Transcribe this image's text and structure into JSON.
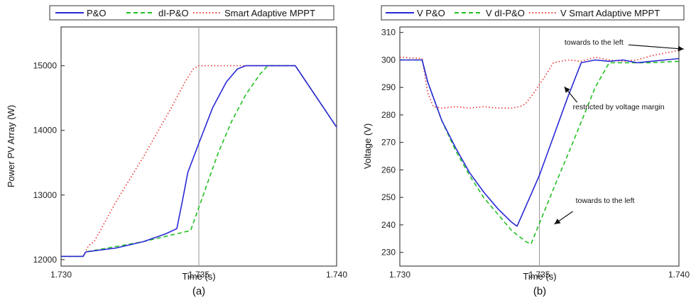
{
  "chart_data": [
    {
      "type": "line",
      "panel_label": "(a)",
      "xlabel": "Time (s)",
      "ylabel": "Power PV Array (W)",
      "xlim": [
        1.73,
        1.74
      ],
      "ylim": [
        11900,
        15600
      ],
      "xticks": [
        1.73,
        1.735,
        1.74
      ],
      "xtick_labels": [
        "1.730",
        "1.735",
        "1.740"
      ],
      "yticks": [
        12000,
        13000,
        14000,
        15000
      ],
      "ytick_labels": [
        "12000",
        "13000",
        "14000",
        "15000"
      ],
      "vline_x": 1.735,
      "grid": false,
      "legend_position": "top",
      "series": [
        {
          "name": "P&O",
          "color": "#2929d6",
          "dash": "solid",
          "x": [
            1.73,
            1.7308,
            1.7309,
            1.732,
            1.733,
            1.7338,
            1.7342,
            1.7344,
            1.7346,
            1.735,
            1.7355,
            1.736,
            1.7364,
            1.7367,
            1.7385,
            1.74
          ],
          "y": [
            12050,
            12050,
            12120,
            12180,
            12280,
            12400,
            12480,
            12900,
            13350,
            13800,
            14350,
            14750,
            14950,
            15000,
            15000,
            14050
          ]
        },
        {
          "name": "dI-P&O",
          "color": "#22c022",
          "dash": "dashed",
          "x": [
            1.73,
            1.7308,
            1.7309,
            1.733,
            1.7347,
            1.7352,
            1.7357,
            1.7362,
            1.7367,
            1.7372,
            1.7375,
            1.7385,
            1.74
          ],
          "y": [
            12050,
            12050,
            12120,
            12280,
            12450,
            13050,
            13650,
            14150,
            14550,
            14860,
            15000,
            15000,
            14050
          ]
        },
        {
          "name": "Smart Adaptive MPPT",
          "color": "#e83030",
          "dash": "dotted",
          "x": [
            1.73,
            1.7308,
            1.731,
            1.7312,
            1.732,
            1.733,
            1.734,
            1.7345,
            1.7348,
            1.735,
            1.7385,
            1.74
          ],
          "y": [
            12050,
            12050,
            12220,
            12280,
            12900,
            13600,
            14350,
            14750,
            14950,
            15000,
            15000,
            14050
          ]
        }
      ]
    },
    {
      "type": "line",
      "panel_label": "(b)",
      "xlabel": "Time (s)",
      "ylabel": "Voltage (V)",
      "xlim": [
        1.73,
        1.74
      ],
      "ylim": [
        225,
        312
      ],
      "xticks": [
        1.73,
        1.735,
        1.74
      ],
      "xtick_labels": [
        "1.730",
        "1.735",
        "1.740"
      ],
      "yticks": [
        230,
        240,
        250,
        260,
        270,
        280,
        290,
        300,
        310
      ],
      "ytick_labels": [
        "230",
        "240",
        "250",
        "260",
        "270",
        "280",
        "290",
        "300",
        "310"
      ],
      "vline_x": 1.735,
      "grid": false,
      "legend_position": "top",
      "annotations": [
        {
          "text": "towards to the left",
          "x": 1.7359,
          "y": 305.5
        },
        {
          "text": "restricted by voltage margin",
          "x": 1.7362,
          "y": 282
        },
        {
          "text": "towards to the left",
          "x": 1.7363,
          "y": 248
        }
      ],
      "series": [
        {
          "name": "V P&O",
          "color": "#2929d6",
          "dash": "solid",
          "x": [
            1.73,
            1.7308,
            1.731,
            1.7315,
            1.732,
            1.7325,
            1.733,
            1.7335,
            1.734,
            1.7342,
            1.735,
            1.7355,
            1.736,
            1.7365,
            1.737,
            1.7375,
            1.738,
            1.7385,
            1.739,
            1.7395,
            1.74
          ],
          "y": [
            300,
            300,
            292,
            278,
            268,
            259,
            252,
            246,
            241,
            239.5,
            258,
            272,
            286,
            299,
            300,
            299.5,
            300,
            299,
            299.5,
            300,
            300.5
          ]
        },
        {
          "name": "V dI-P&O",
          "color": "#22c022",
          "dash": "dashed",
          "x": [
            1.73,
            1.7308,
            1.731,
            1.7315,
            1.732,
            1.7325,
            1.733,
            1.7335,
            1.734,
            1.7345,
            1.7347,
            1.7355,
            1.7362,
            1.737,
            1.7375,
            1.738,
            1.739,
            1.74
          ],
          "y": [
            300,
            300,
            292,
            278,
            267,
            258,
            250,
            244,
            238,
            234,
            233,
            253,
            270,
            290,
            299,
            299,
            299,
            299.5
          ]
        },
        {
          "name": "V Smart Adaptive MPPT",
          "color": "#e83030",
          "dash": "dotted",
          "x": [
            1.73,
            1.7308,
            1.731,
            1.7312,
            1.7315,
            1.732,
            1.7325,
            1.733,
            1.7335,
            1.734,
            1.7343,
            1.7345,
            1.7348,
            1.735,
            1.7352,
            1.7355,
            1.736,
            1.7365,
            1.737,
            1.7375,
            1.738,
            1.7385,
            1.739,
            1.7395,
            1.74
          ],
          "y": [
            301,
            300.5,
            288,
            283,
            282.5,
            283,
            282.5,
            283,
            282.5,
            282.5,
            283,
            284,
            288,
            291,
            294,
            299,
            300,
            299.5,
            301,
            300,
            299.5,
            300,
            301.5,
            302.5,
            303.5
          ]
        }
      ]
    }
  ]
}
